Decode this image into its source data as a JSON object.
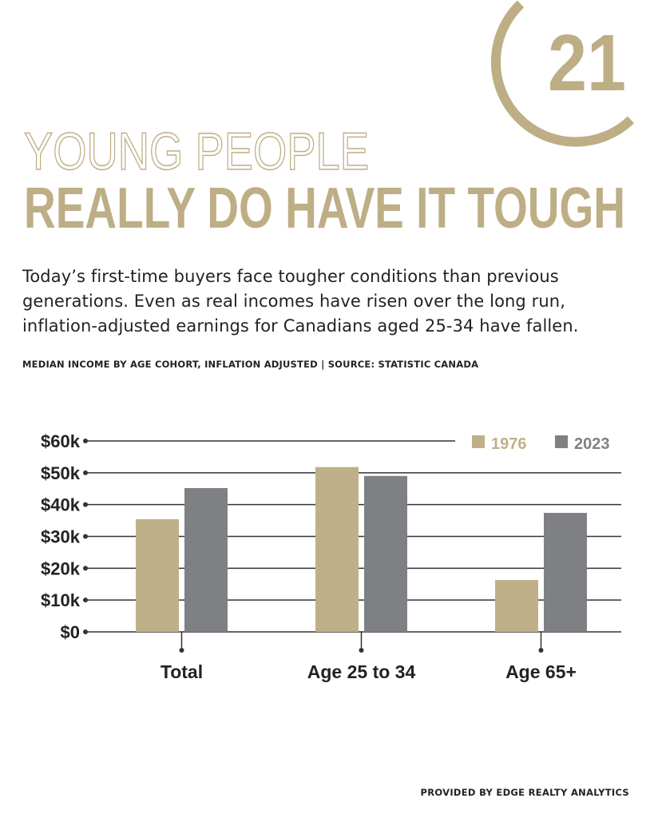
{
  "chart_data": {
    "type": "bar",
    "logo": "21",
    "title_outline": "YOUNG PEOPLE",
    "title": "REALLY DO HAVE IT TOUGH",
    "subtitle": "Today’s first-time buyers face tougher conditions than previous generations. Even as real incomes have risen over the long run, inflation-adjusted earnings for Canadians aged 25-34 have fallen.",
    "source": "MEDIAN INCOME BY AGE COHORT, INFLATION ADJUSTED | SOURCE: STATISTIC CANADA",
    "footer": "PROVIDED BY EDGE REALTY ANALYTICS",
    "categories": [
      "Total",
      "Age 25 to 34",
      "Age 65+"
    ],
    "series": [
      {
        "name": "1976",
        "color": "#bfb089",
        "values": [
          35400,
          51800,
          16300
        ]
      },
      {
        "name": "2023",
        "color": "#7f8083",
        "values": [
          45200,
          49000,
          37400
        ]
      }
    ],
    "ylim": [
      0,
      60000
    ],
    "yticks": [
      {
        "value": 0,
        "label": "$0"
      },
      {
        "value": 10000,
        "label": "$10k"
      },
      {
        "value": 20000,
        "label": "$20k"
      },
      {
        "value": 30000,
        "label": "$30k"
      },
      {
        "value": 40000,
        "label": "$40k"
      },
      {
        "value": 50000,
        "label": "$50k"
      },
      {
        "value": 60000,
        "label": "$60k"
      }
    ],
    "grid": true,
    "legend": "top-right"
  }
}
